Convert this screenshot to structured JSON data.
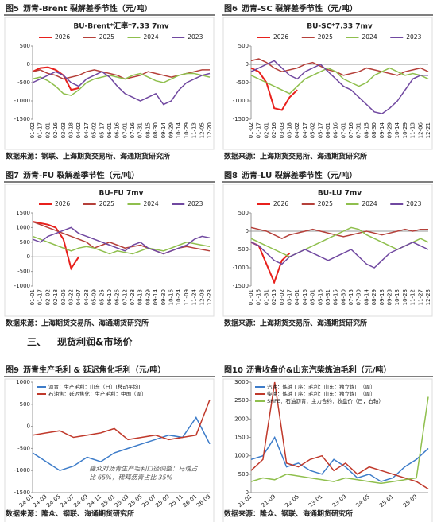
{
  "section": {
    "number": "三、",
    "title": "现货利润&市场价"
  },
  "chart_data": [
    {
      "type": "line",
      "figure": "图5",
      "title": "沥青-Brent 裂解差季节性（元/吨）",
      "chart_title": "BU-Brent*汇率*7.33 7mv",
      "legend": "top",
      "grid": false,
      "categories": [
        "01-02",
        "01-17",
        "02-01",
        "02-16",
        "03-03",
        "03-18",
        "04-02",
        "04-17",
        "05-02",
        "05-17",
        "06-01",
        "06-16",
        "07-01",
        "07-16",
        "07-31",
        "08-15",
        "08-30",
        "09-14",
        "09-29",
        "10-14",
        "10-29",
        "11-13",
        "12-05",
        "12-20"
      ],
      "ylim": [
        -1500,
        500
      ],
      "yticks": [
        500,
        0,
        -500,
        -1000,
        -1500
      ],
      "series": [
        {
          "name": "2026",
          "color": "#e8201c",
          "values": [
            -200,
            -100,
            -80,
            -150,
            -300,
            -700,
            -650,
            null,
            null,
            null,
            null,
            null,
            null,
            null,
            null,
            null,
            null,
            null,
            null,
            null,
            null,
            null,
            null,
            null
          ]
        },
        {
          "name": "2025",
          "color": "#b5403a",
          "values": [
            -200,
            -150,
            -250,
            -300,
            -400,
            -350,
            -300,
            -200,
            -150,
            -200,
            -250,
            -300,
            -400,
            -350,
            -300,
            -200,
            -250,
            -300,
            -350,
            -300,
            -250,
            -200,
            -150,
            -150
          ]
        },
        {
          "name": "2024",
          "color": "#8fbf4d",
          "values": [
            -400,
            -350,
            -450,
            -600,
            -800,
            -850,
            -700,
            -500,
            -400,
            -350,
            -300,
            -350,
            -400,
            -300,
            -250,
            -350,
            -450,
            -500,
            -400,
            -300,
            -250,
            -250,
            -300,
            -350
          ]
        },
        {
          "name": "2023",
          "color": "#7048a0",
          "values": [
            -500,
            -400,
            -300,
            -200,
            -300,
            -500,
            -600,
            -400,
            -300,
            -200,
            -350,
            -600,
            -800,
            -900,
            -1000,
            -900,
            -800,
            -1100,
            -1000,
            -700,
            -500,
            -400,
            -300,
            -250
          ]
        }
      ],
      "source": "数据来源：钢联、上海期货交易所、海通期货研究所"
    },
    {
      "type": "line",
      "figure": "图6",
      "title": "沥青-SC 裂解差季节性（元/吨）",
      "chart_title": "BU-SC*7.33 7mv",
      "legend": "top",
      "grid": false,
      "categories": [
        "01-02",
        "01-17",
        "02-01",
        "02-16",
        "03-03",
        "03-18",
        "04-02",
        "04-17",
        "05-02",
        "05-17",
        "06-01",
        "06-16",
        "07-01",
        "07-16",
        "07-31",
        "08-15",
        "08-30",
        "09-14",
        "09-29",
        "10-14",
        "10-29",
        "11-13",
        "12-06",
        "12-21"
      ],
      "ylim": [
        -1500,
        500
      ],
      "yticks": [
        500,
        0,
        -500,
        -1000,
        -1500
      ],
      "series": [
        {
          "name": "2026",
          "color": "#e8201c",
          "values": [
            -100,
            -200,
            -500,
            -1200,
            -1250,
            -900,
            -700,
            null,
            null,
            null,
            null,
            null,
            null,
            null,
            null,
            null,
            null,
            null,
            null,
            null,
            null,
            null,
            null,
            null
          ]
        },
        {
          "name": "2025",
          "color": "#b5403a",
          "values": [
            100,
            150,
            50,
            -100,
            -200,
            -150,
            -100,
            0,
            50,
            -50,
            -150,
            -200,
            -300,
            -250,
            -200,
            -100,
            -150,
            -200,
            -250,
            -300,
            -200,
            -150,
            -100,
            -200
          ]
        },
        {
          "name": "2024",
          "color": "#8fbf4d",
          "values": [
            -300,
            -400,
            -500,
            -600,
            -700,
            -800,
            -600,
            -400,
            -300,
            -200,
            -100,
            -200,
            -400,
            -500,
            -600,
            -500,
            -300,
            -200,
            -100,
            -200,
            -300,
            -250,
            -300,
            -400
          ]
        },
        {
          "name": "2023",
          "color": "#7048a0",
          "values": [
            -200,
            -100,
            0,
            100,
            -100,
            -300,
            -400,
            -200,
            -100,
            0,
            -200,
            -400,
            -600,
            -700,
            -900,
            -1100,
            -1300,
            -1350,
            -1200,
            -1000,
            -700,
            -400,
            -300,
            -300
          ]
        }
      ],
      "source": "数据来源：上海期货交易所、海通期货研究所"
    },
    {
      "type": "line",
      "figure": "图7",
      "title": "沥青-FU 裂解差季节性（元/吨）",
      "chart_title": "BU-FU 7mv",
      "legend": "top",
      "grid": false,
      "categories": [
        "01-01",
        "01-17",
        "02-02",
        "02-18",
        "03-06",
        "03-22",
        "04-07",
        "04-23",
        "05-09",
        "05-25",
        "06-10",
        "06-26",
        "07-12",
        "07-28",
        "08-13",
        "08-29",
        "09-14",
        "09-30",
        "10-16",
        "10-24",
        "11-09",
        "11-24",
        "12-08",
        "12-23"
      ],
      "ylim": [
        -1000,
        1500
      ],
      "yticks": [
        1500,
        1000,
        500,
        0,
        -500,
        -1000
      ],
      "series": [
        {
          "name": "2026",
          "color": "#e8201c",
          "values": [
            1200,
            1150,
            1100,
            1000,
            600,
            -400,
            0,
            null,
            null,
            null,
            null,
            null,
            null,
            null,
            null,
            null,
            null,
            null,
            null,
            null,
            null,
            null,
            null,
            null
          ]
        },
        {
          "name": "2025",
          "color": "#b5403a",
          "values": [
            1200,
            1100,
            1000,
            900,
            800,
            700,
            600,
            500,
            300,
            400,
            500,
            400,
            300,
            350,
            400,
            300,
            200,
            100,
            200,
            300,
            350,
            300,
            250,
            200
          ]
        },
        {
          "name": "2024",
          "color": "#8fbf4d",
          "values": [
            700,
            600,
            500,
            400,
            300,
            200,
            300,
            350,
            300,
            200,
            100,
            200,
            150,
            100,
            200,
            300,
            250,
            200,
            300,
            400,
            500,
            450,
            400,
            350
          ]
        },
        {
          "name": "2023",
          "color": "#7048a0",
          "values": [
            600,
            500,
            700,
            800,
            900,
            1000,
            800,
            700,
            600,
            500,
            400,
            300,
            200,
            400,
            500,
            300,
            200,
            100,
            200,
            300,
            400,
            600,
            700,
            650
          ]
        }
      ],
      "source": "数据来源：上海期货交易所、海通期货研究所"
    },
    {
      "type": "line",
      "figure": "图8",
      "title": "沥青-LU 裂解差季节性（元/吨）",
      "chart_title": "BU-LU 7mv",
      "legend": "top",
      "grid": false,
      "categories": [
        "01-01",
        "01-16",
        "01-31",
        "02-15",
        "03-02",
        "03-17",
        "04-01",
        "04-16",
        "05-01",
        "05-16",
        "05-31",
        "06-15",
        "06-30",
        "07-15",
        "07-30",
        "08-14",
        "08-29",
        "09-13",
        "09-28",
        "10-13",
        "10-28",
        "11-12",
        "11-27",
        "12-23"
      ],
      "ylim": [
        -1500,
        500
      ],
      "yticks": [
        500,
        0,
        -500,
        -1000,
        -1500
      ],
      "series": [
        {
          "name": "2026",
          "color": "#e8201c",
          "values": [
            -300,
            -400,
            -900,
            -1400,
            -800,
            -600,
            null,
            null,
            null,
            null,
            null,
            null,
            null,
            null,
            null,
            null,
            null,
            null,
            null,
            null,
            null,
            null,
            null,
            null
          ]
        },
        {
          "name": "2025",
          "color": "#b5403a",
          "values": [
            100,
            50,
            0,
            -100,
            -200,
            -100,
            -50,
            0,
            50,
            0,
            -50,
            -100,
            -150,
            -100,
            -50,
            0,
            -50,
            -100,
            -50,
            0,
            50,
            0,
            50,
            50
          ]
        },
        {
          "name": "2024",
          "color": "#8fbf4d",
          "values": [
            -200,
            -300,
            -400,
            -500,
            -600,
            -700,
            -600,
            -500,
            -400,
            -300,
            -200,
            -100,
            0,
            100,
            50,
            -100,
            -200,
            -300,
            -400,
            -500,
            -400,
            -300,
            -200,
            -300
          ]
        },
        {
          "name": "2023",
          "color": "#7048a0",
          "values": [
            -300,
            -400,
            -600,
            -800,
            -900,
            -700,
            -600,
            -500,
            -600,
            -700,
            -800,
            -700,
            -600,
            -500,
            -700,
            -900,
            -1000,
            -800,
            -600,
            -500,
            -400,
            -300,
            -400,
            -500
          ]
        }
      ],
      "source": "数据来源：上海期货交易所、海通期货研究所"
    },
    {
      "type": "line",
      "figure": "图9",
      "title": "沥青生产毛利 & 延迟焦化毛利（元/吨）",
      "legend": "top-left",
      "grid": false,
      "categories": [
        "24-01",
        "24-03",
        "24-05",
        "24-07",
        "24-09",
        "24-11",
        "25-01",
        "25-03",
        "25-05",
        "25-07",
        "25-09",
        "25-11",
        "26-01",
        "26-03"
      ],
      "ylim": [
        -1500,
        1000
      ],
      "yticks": [
        1000,
        500,
        0,
        -500,
        -1000,
        -1500
      ],
      "series": [
        {
          "name": "沥青：生产毛利：山东（日）(移动平均)",
          "color": "#3d7cc9",
          "values": [
            -600,
            -800,
            -1000,
            -900,
            -700,
            -800,
            -600,
            -500,
            -400,
            -300,
            -200,
            -250,
            200,
            -400
          ]
        },
        {
          "name": "石油焦：延迟焦化：生产毛利：中国（周）",
          "color": "#c0392b",
          "values": [
            -200,
            -150,
            -100,
            -250,
            -200,
            -150,
            -50,
            -300,
            -250,
            -200,
            -300,
            -250,
            -200,
            600
          ]
        }
      ],
      "annotation": [
        "隆众对沥青生产毛利口径调整：马瑞占",
        "比 65%，稀释沥青占比 35%"
      ],
      "source": "数据来源：隆众、钢联、海通期货研究所"
    },
    {
      "type": "line",
      "figure": "图10",
      "title": "沥青收盘价&山东汽柴炼油毛利（元/吨）",
      "legend": "top-left",
      "grid": false,
      "categories": [
        "21-01",
        null,
        "21-09",
        null,
        "22-05",
        null,
        "23-01",
        null,
        "23-09",
        null,
        "24-05",
        null,
        "25-01",
        null,
        "25-09",
        null
      ],
      "ylim": [
        0,
        3000
      ],
      "yticks": [
        3000,
        2500,
        2000,
        1500,
        1000,
        500,
        0
      ],
      "series": [
        {
          "name": "汽油：炼油工序：毛利：山东：独立炼厂（周）",
          "color": "#3d7cc9",
          "values": [
            900,
            1000,
            1500,
            700,
            800,
            600,
            500,
            900,
            700,
            400,
            500,
            300,
            400,
            700,
            900,
            1200
          ]
        },
        {
          "name": "柴油：炼油工序：毛利：山东：独立炼厂（周）",
          "color": "#c0392b",
          "values": [
            600,
            900,
            3000,
            800,
            700,
            900,
            1000,
            600,
            800,
            500,
            700,
            600,
            500,
            400,
            300,
            100
          ]
        },
        {
          "name": "SHFE：石油沥青：主力合约：收盘价（日，右轴）",
          "color": "#8fbf4d",
          "values": [
            300,
            400,
            350,
            500,
            450,
            400,
            350,
            300,
            400,
            350,
            300,
            250,
            300,
            350,
            400,
            2600
          ]
        }
      ],
      "source": "数据来源：隆众、钢联、海通期货研究所"
    }
  ]
}
